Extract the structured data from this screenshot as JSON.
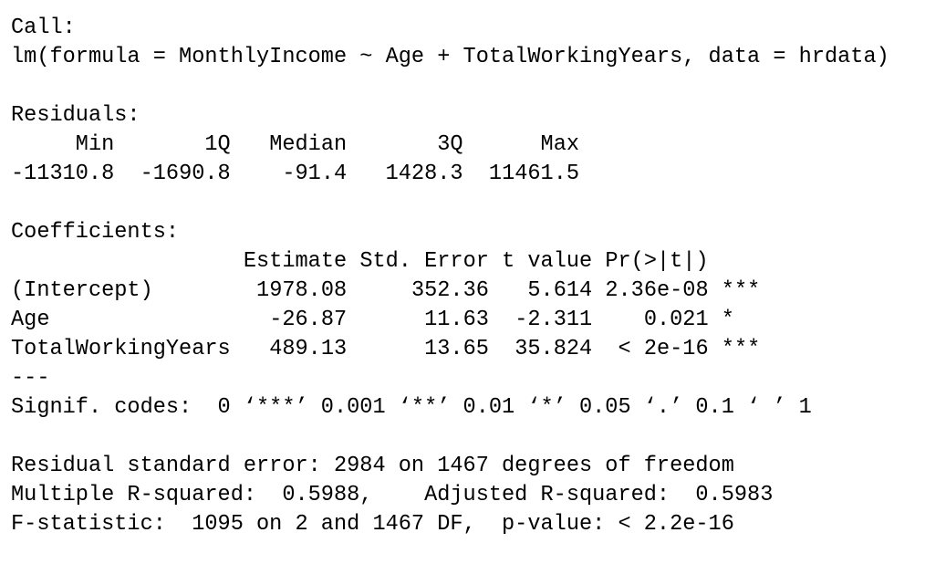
{
  "call": {
    "label": "Call:",
    "text": "lm(formula = MonthlyIncome ~ Age + TotalWorkingYears, data = hrdata)"
  },
  "residuals": {
    "label": "Residuals:",
    "headers": [
      "Min",
      "1Q",
      "Median",
      "3Q",
      "Max"
    ],
    "values": [
      "-11310.8",
      "-1690.8",
      "-91.4",
      "1428.3",
      "11461.5"
    ]
  },
  "coefficients": {
    "label": "Coefficients:",
    "headers": [
      "Estimate",
      "Std. Error",
      "t value",
      "Pr(>|t|)"
    ],
    "rows": [
      [
        "(Intercept)",
        "1978.08",
        "352.36",
        "5.614",
        "2.36e-08",
        "***"
      ],
      [
        "Age",
        "-26.87",
        "11.63",
        "-2.311",
        "0.021",
        "*"
      ],
      [
        "TotalWorkingYears",
        "489.13",
        "13.65",
        "35.824",
        "< 2e-16",
        "***"
      ]
    ]
  },
  "separator": "---",
  "signif_codes": "Signif. codes:  0 ‘***’ 0.001 ‘**’ 0.01 ‘*’ 0.05 ‘.’ 0.1 ‘ ’ 1",
  "summary": [
    "Residual standard error: 2984 on 1467 degrees of freedom",
    "Multiple R-squared:  0.5988,    Adjusted R-squared:  0.5983",
    "F-statistic:  1095 on 2 and 1467 DF,  p-value: < 2.2e-16"
  ]
}
